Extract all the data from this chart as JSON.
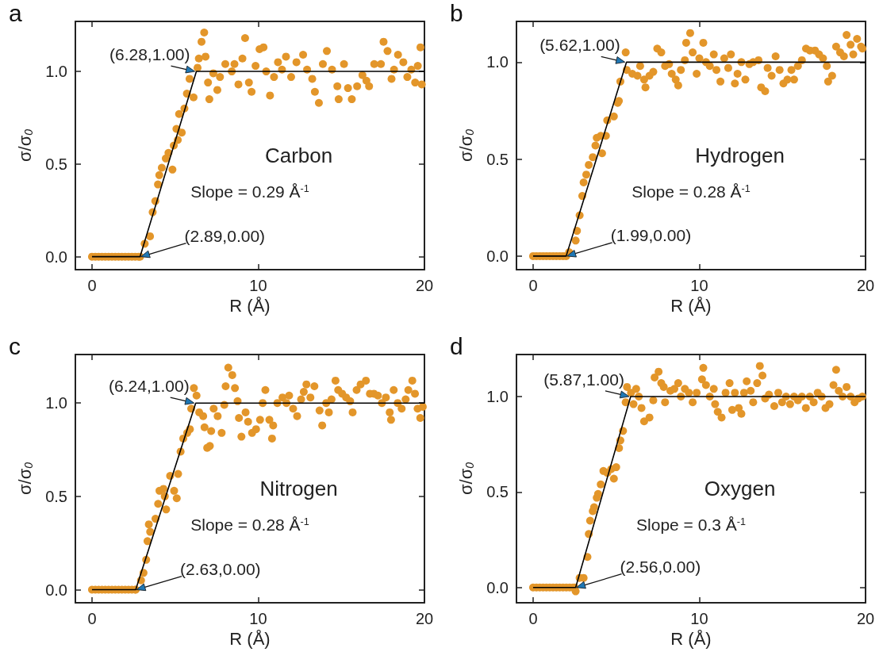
{
  "chart_data": [
    {
      "type": "scatter",
      "title": "a",
      "xlabel": "R (Å)",
      "ylabel": "σ/σ$_{0}$",
      "marker": "circle",
      "xlim": [
        -1,
        20
      ],
      "ylim": [
        -0.07,
        1.27
      ],
      "xticks": [
        0,
        10,
        20
      ],
      "yticks": [
        {
          "value": 0,
          "label": "0.0"
        },
        {
          "value": 0.5,
          "label": "0.5"
        },
        {
          "value": 1,
          "label": "1.0"
        }
      ],
      "annotations": [
        "Carbon",
        "Slope = 0.29 Å$^{-1}$",
        {
          "text": "(6.28,1.00)",
          "x": 6.28,
          "y": 1.0
        },
        {
          "text": "(2.89,0.00)",
          "x": 2.89,
          "y": 0.0
        }
      ],
      "series": [
        {
          "type": "scatter",
          "color": "#e3962a",
          "x": [
            0,
            0.2,
            0.4,
            0.6,
            0.8,
            1,
            1.2,
            1.4,
            1.6,
            1.8,
            2,
            2.2,
            2.4,
            2.6,
            2.8,
            2.89,
            3.17,
            3.49,
            3.65,
            3.81,
            3.97,
            4.05,
            4.2,
            4.44,
            4.6,
            4.84,
            4.92,
            5.16,
            5.4,
            5.08,
            5.24,
            5.56,
            5.71,
            6.11,
            5.87,
            6.35,
            6.43,
            6.59,
            6.75,
            6.83,
            6.98,
            7.06,
            7.3,
            7.54,
            7.7,
            8.02,
            8.41,
            8.57,
            8.81,
            9.21,
            9.05,
            9.44,
            9.6,
            9.84,
            10.08,
            10.32,
            10.48,
            10.71,
            10.95,
            11.19,
            11.43,
            11.67,
            11.98,
            12.3,
            12.7,
            12.94,
            13.25,
            13.41,
            13.65,
            13.89,
            14.13,
            14.44,
            14.76,
            14.84,
            15.16,
            15.4,
            15.63,
            15.95,
            16.27,
            16.51,
            16.67,
            16.98,
            17.38,
            17.54,
            17.78,
            18.02,
            18.17,
            18.41,
            18.73,
            18.97,
            19.21,
            19.44,
            19.6,
            19.76,
            19.84
          ],
          "values": [
            0,
            0,
            0,
            0,
            0,
            0,
            0,
            0,
            0,
            0,
            0,
            0,
            0,
            0,
            0,
            0,
            0.07,
            0.11,
            0.24,
            0.3,
            0.39,
            0.44,
            0.48,
            0.53,
            0.56,
            0.47,
            0.6,
            0.63,
            0.67,
            0.69,
            0.77,
            0.8,
            0.88,
            0.86,
            0.96,
            1.02,
            1.07,
            1.16,
            1.21,
            1.08,
            0.94,
            0.85,
            0.99,
            0.9,
            0.97,
            1.04,
            1.0,
            1.04,
            0.93,
            1.18,
            1.07,
            0.94,
            0.89,
            1.03,
            1.12,
            1.13,
            1.0,
            0.87,
            0.97,
            1.05,
            1.01,
            1.08,
            0.97,
            1.05,
            1.09,
            1.01,
            0.96,
            0.89,
            0.83,
            1.04,
            1.11,
            1.01,
            0.92,
            0.85,
            1.04,
            0.91,
            0.85,
            0.92,
            0.98,
            0.95,
            0.92,
            1.04,
            1.04,
            1.16,
            1.11,
            0.96,
            1.01,
            1.09,
            1.05,
            0.97,
            1.01,
            0.94,
            1.03,
            1.13,
            0.93
          ]
        },
        {
          "type": "line",
          "color": "#000000",
          "marker": "none",
          "x": [
            0,
            2.89,
            6.28,
            20
          ],
          "values": [
            0,
            0,
            1,
            1
          ]
        }
      ]
    },
    {
      "type": "scatter",
      "title": "b",
      "xlabel": "R (Å)",
      "ylabel": "σ/σ$_{0}$",
      "marker": "circle",
      "xlim": [
        -1,
        20
      ],
      "ylim": [
        -0.07,
        1.21
      ],
      "xticks": [
        0,
        10,
        20
      ],
      "yticks": [
        {
          "value": 0,
          "label": "0.0"
        },
        {
          "value": 0.5,
          "label": "0.5"
        },
        {
          "value": 1,
          "label": "1.0"
        }
      ],
      "annotations": [
        "Hydrogen",
        "Slope = 0.28 Å$^{-1}$",
        {
          "text": "(5.62,1.00)",
          "x": 5.62,
          "y": 1.0
        },
        {
          "text": "(1.99,0.00)",
          "x": 1.99,
          "y": 0.0
        }
      ],
      "series": [
        {
          "type": "scatter",
          "color": "#e3962a",
          "x": [
            0,
            0.2,
            0.4,
            0.6,
            0.8,
            1,
            1.2,
            1.4,
            1.6,
            1.8,
            1.99,
            2.17,
            2.56,
            2.64,
            2.8,
            2.96,
            3.04,
            3.2,
            3.35,
            3.59,
            3.75,
            3.83,
            4.15,
            4.07,
            4.38,
            4.46,
            4.86,
            5.09,
            5.16,
            5.25,
            5.57,
            5.63,
            5.97,
            6.28,
            6.44,
            6.68,
            6.76,
            7.0,
            7.23,
            7.47,
            7.71,
            7.94,
            8.18,
            8.34,
            8.58,
            8.73,
            8.89,
            9.13,
            9.21,
            9.45,
            9.6,
            9.84,
            10.0,
            10.24,
            10.4,
            10.63,
            10.87,
            11.03,
            11.27,
            11.5,
            11.74,
            11.9,
            12.14,
            12.3,
            12.53,
            12.77,
            13.01,
            13.24,
            13.56,
            13.72,
            13.96,
            14.11,
            14.35,
            14.59,
            14.83,
            15.06,
            15.3,
            15.54,
            15.7,
            15.93,
            16.17,
            16.42,
            16.65,
            16.96,
            17.2,
            17.44,
            17.67,
            17.75,
            17.99,
            18.23,
            18.47,
            18.7,
            18.86,
            19.1,
            19.26,
            19.49,
            19.73,
            19.81
          ],
          "values": [
            0,
            0,
            0,
            0,
            0,
            0,
            0,
            0,
            0,
            0,
            0,
            0.02,
            0.08,
            0.13,
            0.21,
            0.31,
            0.38,
            0.42,
            0.47,
            0.51,
            0.57,
            0.61,
            0.53,
            0.62,
            0.62,
            0.7,
            0.72,
            0.79,
            0.8,
            0.9,
            1.05,
            0.96,
            0.94,
            0.93,
            0.98,
            0.91,
            0.87,
            0.93,
            0.95,
            1.07,
            1.05,
            0.98,
            0.99,
            0.94,
            0.91,
            0.88,
            0.96,
            1.01,
            1.1,
            1.15,
            1.05,
            0.94,
            1.02,
            1.1,
            1.0,
            0.98,
            1.04,
            0.96,
            0.9,
            1.02,
            0.97,
            1.04,
            0.89,
            0.94,
            1.0,
            0.91,
            0.99,
            1.0,
            1.01,
            0.87,
            0.85,
            0.97,
            0.93,
            1.03,
            0.96,
            0.89,
            0.91,
            0.96,
            0.91,
            0.98,
            1.01,
            1.07,
            1.06,
            1.06,
            1.04,
            1.02,
            0.98,
            0.9,
            0.93,
            1.08,
            1.05,
            1.03,
            1.14,
            1.09,
            1.04,
            1.12,
            1.08,
            1.07
          ]
        },
        {
          "type": "line",
          "color": "#000000",
          "marker": "none",
          "x": [
            0,
            1.99,
            5.62,
            20
          ],
          "values": [
            0,
            0,
            1,
            1
          ]
        }
      ]
    },
    {
      "type": "scatter",
      "title": "c",
      "xlabel": "R (Å)",
      "ylabel": "σ/σ$_{0}$",
      "marker": "circle",
      "xlim": [
        -1,
        20
      ],
      "ylim": [
        -0.07,
        1.26
      ],
      "xticks": [
        0,
        10,
        20
      ],
      "yticks": [
        {
          "value": 0,
          "label": "0.0"
        },
        {
          "value": 0.5,
          "label": "0.5"
        },
        {
          "value": 1,
          "label": "1.0"
        }
      ],
      "annotations": [
        "Nitrogen",
        "Slope = 0.28 Å$^{-1}$",
        {
          "text": "(6.24,1.00)",
          "x": 6.24,
          "y": 1.0
        },
        {
          "text": "(2.63,0.00)",
          "x": 2.63,
          "y": 0.0
        }
      ],
      "series": [
        {
          "type": "scatter",
          "color": "#e3962a",
          "x": [
            0,
            0.2,
            0.4,
            0.6,
            0.8,
            1,
            1.2,
            1.4,
            1.6,
            1.8,
            2,
            2.2,
            2.4,
            2.6,
            2.63,
            2.95,
            3.1,
            3.26,
            3.34,
            3.5,
            3.42,
            3.82,
            3.98,
            4.06,
            4.3,
            4.46,
            4.38,
            4.7,
            4.94,
            5.1,
            5.18,
            5.33,
            5.49,
            5.73,
            5.89,
            5.97,
            6.13,
            6.29,
            6.45,
            6.69,
            6.77,
            6.93,
            7.09,
            7.17,
            7.32,
            7.56,
            7.8,
            7.96,
            8.04,
            8.2,
            8.44,
            8.6,
            8.76,
            8.84,
            8.99,
            9.24,
            9.39,
            9.63,
            9.87,
            10.11,
            10.27,
            10.43,
            10.67,
            10.83,
            10.9,
            11.15,
            11.46,
            11.7,
            11.86,
            12.1,
            12.34,
            12.58,
            12.74,
            12.9,
            13.14,
            13.38,
            13.69,
            13.85,
            14.09,
            14.25,
            14.41,
            14.65,
            14.81,
            15.05,
            15.29,
            15.53,
            15.68,
            15.92,
            16.16,
            16.48,
            16.72,
            16.96,
            17.2,
            17.44,
            17.68,
            17.91,
            17.99,
            18.15,
            18.39,
            18.63,
            18.87,
            19.03,
            19.27,
            19.43,
            19.59,
            19.75,
            19.9
          ],
          "values": [
            0,
            0,
            0,
            0,
            0,
            0,
            0,
            0,
            0,
            0,
            0,
            0,
            0,
            0,
            0,
            0.05,
            0.09,
            0.16,
            0.26,
            0.31,
            0.35,
            0.38,
            0.46,
            0.53,
            0.54,
            0.43,
            0.5,
            0.61,
            0.53,
            0.49,
            0.62,
            0.74,
            0.81,
            0.84,
            0.86,
            0.97,
            1.08,
            1.04,
            0.95,
            0.93,
            0.87,
            0.76,
            0.77,
            0.85,
            0.97,
            0.93,
            0.84,
            0.99,
            1.09,
            1.19,
            1.15,
            1.08,
            1.01,
            0.92,
            0.82,
            0.95,
            0.9,
            0.84,
            0.86,
            0.91,
            1.0,
            1.07,
            0.91,
            0.81,
            0.88,
            1.0,
            1.03,
            1.0,
            1.04,
            0.97,
            0.93,
            1.02,
            1.06,
            1.1,
            1.03,
            1.09,
            0.96,
            0.88,
            1.0,
            0.95,
            1.02,
            1.12,
            1.07,
            1.05,
            1.03,
            1.01,
            0.95,
            1.07,
            1.1,
            1.12,
            1.05,
            1.05,
            1.04,
            1.0,
            1.03,
            0.95,
            0.91,
            1.07,
            1.0,
            0.97,
            1.02,
            1.07,
            1.12,
            1.05,
            0.97,
            0.92,
            0.98
          ]
        },
        {
          "type": "line",
          "color": "#000000",
          "marker": "none",
          "x": [
            0,
            2.63,
            6.24,
            20
          ],
          "values": [
            0,
            0,
            1,
            1
          ]
        }
      ]
    },
    {
      "type": "scatter",
      "title": "d",
      "xlabel": "R (Å)",
      "ylabel": "σ/σ$_{0}$",
      "marker": "circle",
      "xlim": [
        -1,
        20
      ],
      "ylim": [
        -0.08,
        1.22
      ],
      "xticks": [
        0,
        10,
        20
      ],
      "yticks": [
        {
          "value": 0,
          "label": "0.0"
        },
        {
          "value": 0.5,
          "label": "0.5"
        },
        {
          "value": 1,
          "label": "1.0"
        }
      ],
      "annotations": [
        "Oxygen",
        "Slope = 0.3 Å$^{-1}$",
        {
          "text": "(5.87,1.00)",
          "x": 5.87,
          "y": 1.0
        },
        {
          "text": "(2.56,0.00)",
          "x": 2.56,
          "y": 0.0
        }
      ],
      "series": [
        {
          "type": "scatter",
          "color": "#e3962a",
          "x": [
            0,
            0.2,
            0.4,
            0.6,
            0.8,
            1,
            1.2,
            1.4,
            1.6,
            1.8,
            2,
            2.2,
            2.4,
            2.5,
            2.56,
            2.8,
            3.04,
            3.27,
            3.35,
            3.43,
            3.59,
            3.67,
            3.83,
            3.91,
            4.07,
            4.23,
            4.46,
            4.7,
            4.86,
            5.0,
            5.17,
            5.25,
            5.41,
            5.57,
            5.65,
            5.89,
            6.04,
            6.2,
            6.36,
            6.52,
            6.68,
            7.0,
            7.23,
            7.31,
            7.55,
            7.71,
            7.86,
            7.94,
            8.26,
            8.5,
            8.73,
            8.89,
            9.13,
            9.37,
            9.6,
            9.84,
            10.16,
            10.24,
            10.4,
            10.63,
            10.87,
            10.95,
            11.11,
            11.34,
            11.58,
            11.82,
            11.98,
            12.14,
            12.37,
            12.53,
            12.69,
            12.85,
            13.09,
            13.24,
            13.48,
            13.64,
            13.8,
            13.96,
            14.19,
            14.51,
            14.75,
            14.98,
            15.22,
            15.46,
            15.7,
            15.93,
            16.17,
            16.41,
            16.65,
            16.88,
            17.12,
            17.36,
            17.59,
            17.83,
            18.07,
            18.23,
            18.39,
            18.62,
            18.86,
            19.1,
            19.34,
            19.57,
            19.81
          ],
          "values": [
            0,
            0,
            0,
            0,
            0,
            0,
            0,
            0,
            0,
            0,
            0,
            0,
            0,
            0,
            -0.02,
            0.05,
            0.05,
            0.16,
            0.28,
            0.35,
            0.4,
            0.42,
            0.47,
            0.49,
            0.54,
            0.61,
            0.6,
            0.62,
            0.57,
            0.63,
            0.73,
            0.77,
            0.82,
            0.97,
            1.05,
            1.02,
            0.96,
            1.04,
            1.0,
            0.94,
            0.87,
            0.89,
            0.98,
            1.1,
            1.13,
            1.07,
            1.05,
            0.97,
            1.03,
            1.04,
            1.07,
            1.0,
            1.04,
            1.02,
            0.97,
            1.02,
            1.09,
            1.15,
            1.06,
            1.0,
            1.04,
            0.96,
            0.92,
            0.89,
            1.02,
            1.07,
            0.93,
            1.02,
            0.94,
            0.91,
            1.02,
            1.08,
            1.03,
            0.97,
            1.07,
            1.16,
            1.11,
            0.99,
            1.01,
            0.95,
            1.02,
            0.97,
            1.0,
            0.96,
            1.0,
            0.98,
            1.0,
            0.94,
            1.0,
            0.97,
            1.02,
            1.0,
            0.94,
            0.96,
            1.06,
            1.14,
            1.03,
            1.0,
            1.05,
            1.0,
            0.97,
            0.99,
            1.0
          ]
        },
        {
          "type": "line",
          "color": "#000000",
          "marker": "none",
          "x": [
            0,
            2.56,
            5.87,
            20
          ],
          "values": [
            0,
            0,
            1,
            1
          ]
        }
      ]
    }
  ]
}
